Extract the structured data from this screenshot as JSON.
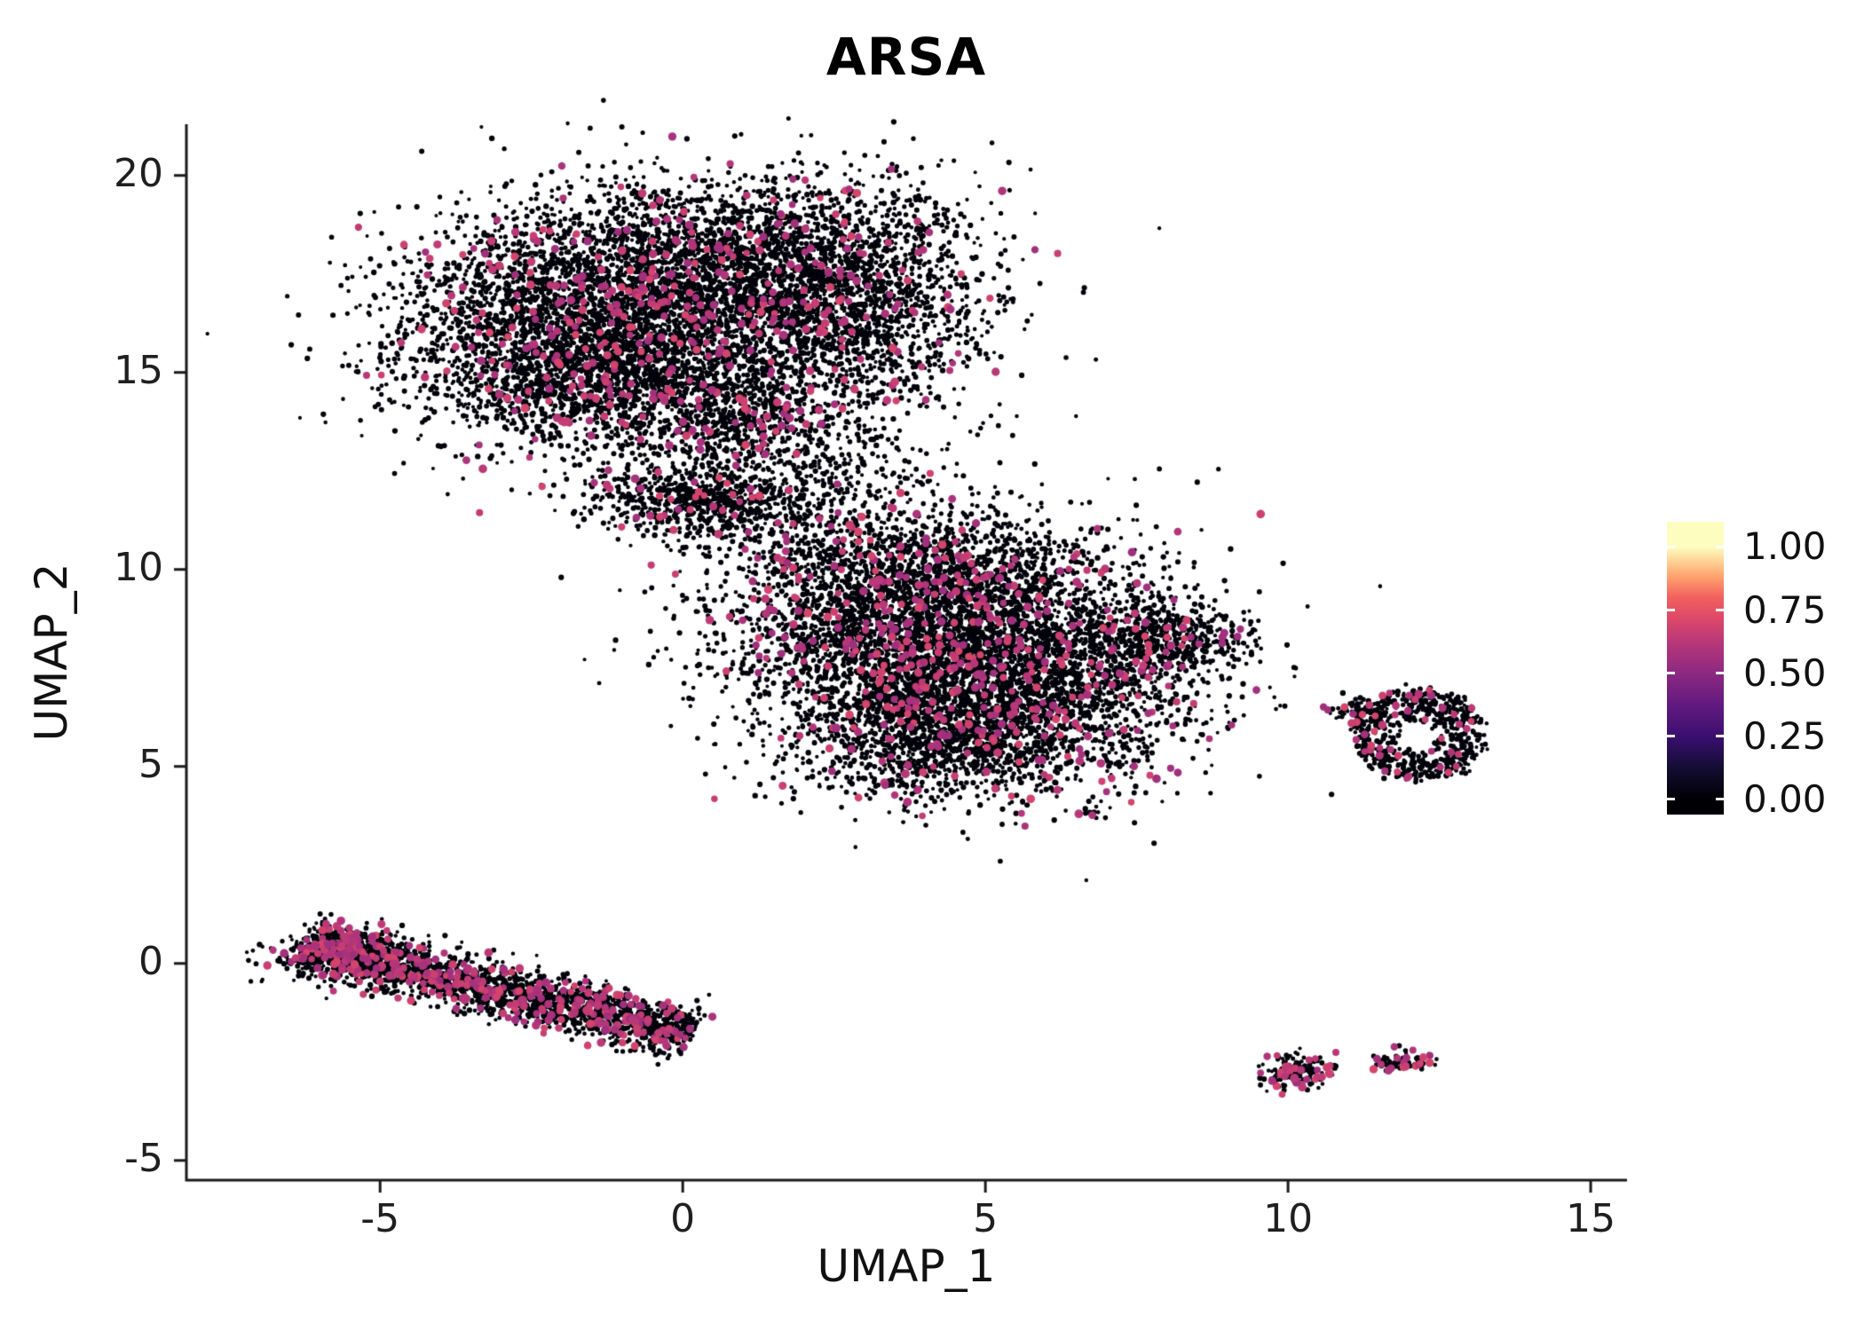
{
  "figure": {
    "background": "#ffffff"
  },
  "chart_data": {
    "type": "scatter",
    "subtype": "umap_feature_plot",
    "title": "ARSA",
    "xlabel": "UMAP_1",
    "ylabel": "UMAP_2",
    "x_ticks": [
      -5,
      0,
      5,
      10,
      15
    ],
    "y_ticks": [
      -5,
      0,
      5,
      10,
      15,
      20
    ],
    "x_range": [
      -8.2,
      15.6
    ],
    "y_range": [
      -5.5,
      21.3
    ],
    "grid": false,
    "seed": 7,
    "axis_color": "#1a1a1a",
    "text_color": "#1a1a1a",
    "point_color_low": "#02020a",
    "point_style": {
      "low_radius": [
        2.0,
        3.2
      ],
      "high_radius": [
        3.7,
        4.9
      ],
      "high_value_range": [
        0.55,
        0.7
      ]
    },
    "legend": {
      "position": "right",
      "labels": [
        "1.00",
        "0.75",
        "0.50",
        "0.25",
        "0.00"
      ],
      "values": [
        1.0,
        0.75,
        0.5,
        0.25,
        0.0
      ],
      "vmin": -0.06,
      "vmax": 1.1,
      "gradient": [
        [
          0.0,
          "#000004"
        ],
        [
          0.12,
          "#120d31"
        ],
        [
          0.25,
          "#3b0f70"
        ],
        [
          0.38,
          "#641a80"
        ],
        [
          0.5,
          "#8c2981"
        ],
        [
          0.62,
          "#b73779"
        ],
        [
          0.72,
          "#de4968"
        ],
        [
          0.8,
          "#f1605d"
        ],
        [
          0.88,
          "#fe9f6d"
        ],
        [
          0.94,
          "#fecf92"
        ],
        [
          1.0,
          "#fcfdbf"
        ]
      ]
    },
    "clusters": [
      {
        "id": "top-left-core",
        "shape": "gauss",
        "cx": -1.9,
        "cy": 16.2,
        "sx": 1.45,
        "sy": 1.45,
        "n": 2600,
        "pink_frac": 0.06
      },
      {
        "id": "top-left-upper",
        "shape": "gauss",
        "cx": 0.4,
        "cy": 17.6,
        "sx": 1.5,
        "sy": 1.15,
        "n": 2200,
        "pink_frac": 0.06
      },
      {
        "id": "top-left-right-lobe",
        "shape": "gauss",
        "cx": 2.9,
        "cy": 16.9,
        "sx": 1.15,
        "sy": 1.5,
        "n": 1700,
        "pink_frac": 0.055
      },
      {
        "id": "top-left-lower",
        "shape": "gauss",
        "cx": -0.6,
        "cy": 14.8,
        "sx": 1.6,
        "sy": 0.9,
        "n": 1300,
        "pink_frac": 0.06
      },
      {
        "id": "top-left-tail",
        "shape": "gauss",
        "cx": 0.9,
        "cy": 13.6,
        "sx": 0.9,
        "sy": 0.75,
        "n": 500,
        "pink_frac": 0.05
      },
      {
        "id": "connector-wedge",
        "shape": "gauss",
        "cx": 0.3,
        "cy": 11.7,
        "sx": 0.95,
        "sy": 0.45,
        "n": 650,
        "pink_frac": 0.07
      },
      {
        "id": "connector-bridge",
        "shape": "gauss",
        "cx": 2.3,
        "cy": 11.6,
        "sx": 1.1,
        "sy": 1.0,
        "n": 380,
        "pink_frac": 0.05
      },
      {
        "id": "center-upper-left",
        "shape": "gauss",
        "cx": 3.5,
        "cy": 8.6,
        "sx": 1.5,
        "sy": 1.3,
        "n": 2600,
        "pink_frac": 0.07
      },
      {
        "id": "center-right",
        "shape": "gauss",
        "cx": 5.7,
        "cy": 7.3,
        "sx": 1.5,
        "sy": 1.4,
        "n": 2600,
        "pink_frac": 0.07
      },
      {
        "id": "center-lower",
        "shape": "gauss",
        "cx": 4.1,
        "cy": 5.9,
        "sx": 1.3,
        "sy": 0.9,
        "n": 1300,
        "pink_frac": 0.07
      },
      {
        "id": "center-right-tip",
        "shape": "gauss",
        "cx": 7.9,
        "cy": 8.3,
        "sx": 0.75,
        "sy": 0.45,
        "n": 450,
        "pink_frac": 0.06
      },
      {
        "id": "center-top-edge",
        "shape": "gauss",
        "cx": 4.6,
        "cy": 10.1,
        "sx": 1.3,
        "sy": 0.6,
        "n": 550,
        "pink_frac": 0.06
      },
      {
        "id": "center-stray",
        "shape": "gauss",
        "cx": 6.8,
        "cy": 3.8,
        "sx": 0.18,
        "sy": 0.12,
        "n": 12,
        "pink_frac": 0.25
      },
      {
        "id": "mid-sparse",
        "shape": "gauss",
        "cx": 5.2,
        "cy": 11.8,
        "sx": 1.8,
        "sy": 0.55,
        "n": 30,
        "pink_frac": 0.08
      },
      {
        "id": "right-ring",
        "shape": "ring",
        "cx": 12.15,
        "cy": 5.8,
        "rmin": 0.3,
        "rmax": 1.1,
        "ex": 1.0,
        "ey": 1.05,
        "n": 640,
        "pink_frac": 0.07
      },
      {
        "id": "right-spur",
        "shape": "gauss",
        "cx": 11.15,
        "cy": 6.4,
        "sx": 0.22,
        "sy": 0.15,
        "n": 55,
        "pink_frac": 0.12
      },
      {
        "id": "bottom-left-band",
        "shape": "band",
        "x1": -6.25,
        "y1": 0.45,
        "x2": 0.15,
        "y2": -1.8,
        "spread": 0.32,
        "n": 2100,
        "pink_frac": 0.15
      },
      {
        "id": "bottom-left-head",
        "shape": "gauss",
        "cx": -5.6,
        "cy": 0.3,
        "sx": 0.55,
        "sy": 0.3,
        "n": 350,
        "pink_frac": 0.15
      },
      {
        "id": "bottom-right-blob",
        "shape": "gauss",
        "cx": 10.15,
        "cy": -2.75,
        "sx": 0.28,
        "sy": 0.22,
        "n": 160,
        "pink_frac": 0.2
      },
      {
        "id": "bottom-right-strip",
        "shape": "band",
        "x1": 11.45,
        "y1": -2.55,
        "x2": 12.35,
        "y2": -2.45,
        "spread": 0.07,
        "n": 90,
        "pink_frac": 0.18
      },
      {
        "id": "bottom-right-dot",
        "shape": "gauss",
        "cx": 10.75,
        "cy": -2.6,
        "sx": 0.05,
        "sy": 0.04,
        "n": 6,
        "pink_frac": 0.15
      }
    ]
  }
}
